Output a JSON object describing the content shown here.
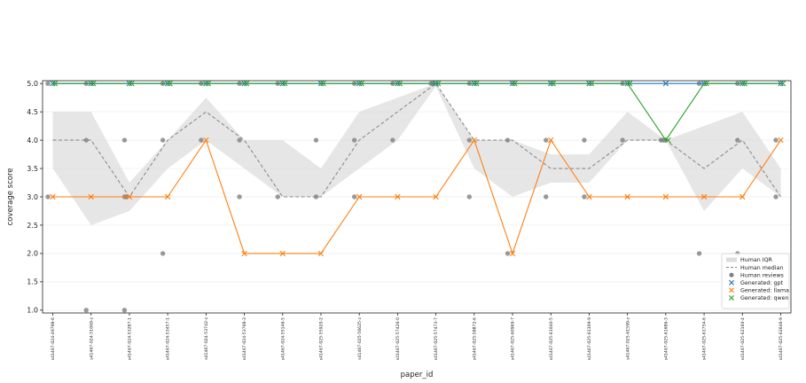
{
  "chart_data": {
    "type": "line",
    "title": "",
    "xlabel": "paper_id",
    "ylabel": "coverage score",
    "ylim": [
      0.95,
      5.05
    ],
    "yticks": [
      "1.0",
      "1.5",
      "2.0",
      "2.5",
      "3.0",
      "3.5",
      "4.0",
      "4.5",
      "5.0"
    ],
    "grid": "horizontal",
    "legend_position": "lower-right",
    "categories": [
      "s41467-024-49798-6",
      "s41467-024-51669-z",
      "s41467-024-53287-1",
      "s41467-024-53457-1",
      "s41467-024-53742-z",
      "s41467-024-53768-3",
      "s41467-024-55146-5",
      "s41467-025-55920-2",
      "s41467-025-56625-z",
      "s41467-025-57426-0",
      "s41467-025-57473-7",
      "s41467-025-58872-6",
      "s41467-025-60969-7",
      "s41467-025-61040-5",
      "s41467-025-61309-9",
      "s41467-025-61599-z",
      "s41467-025-61686-3",
      "s41467-025-61754-6",
      "s41467-025-62160-4",
      "s41467-025-62646-9"
    ],
    "human_iqr": {
      "name": "Human IQR",
      "lower": [
        3.5,
        2.5,
        2.75,
        3.5,
        4.0,
        3.5,
        3.0,
        3.0,
        3.5,
        4.0,
        4.95,
        3.5,
        3.0,
        3.25,
        3.25,
        4.0,
        4.0,
        2.75,
        3.5,
        3.0
      ],
      "upper": [
        4.5,
        4.5,
        3.25,
        4.0,
        4.75,
        4.0,
        4.0,
        3.5,
        4.5,
        4.75,
        5.0,
        4.0,
        4.0,
        3.75,
        3.75,
        4.5,
        4.0,
        4.25,
        4.5,
        3.5
      ]
    },
    "human_median": {
      "name": "Human median",
      "values": [
        4.0,
        4.0,
        3.0,
        4.0,
        4.5,
        4.0,
        3.0,
        3.0,
        4.0,
        4.5,
        5.0,
        4.0,
        4.0,
        3.5,
        3.5,
        4.0,
        4.0,
        3.5,
        4.0,
        3.0
      ]
    },
    "human_reviews": {
      "name": "Human reviews",
      "points": [
        [
          0,
          5
        ],
        [
          0,
          3
        ],
        [
          1,
          5
        ],
        [
          1,
          4
        ],
        [
          1,
          1
        ],
        [
          2,
          4
        ],
        [
          2,
          3
        ],
        [
          2,
          3
        ],
        [
          2,
          1
        ],
        [
          3,
          5
        ],
        [
          3,
          4
        ],
        [
          3,
          2
        ],
        [
          4,
          5
        ],
        [
          4,
          4
        ],
        [
          5,
          5
        ],
        [
          5,
          4
        ],
        [
          5,
          3
        ],
        [
          6,
          5
        ],
        [
          6,
          3
        ],
        [
          7,
          4
        ],
        [
          7,
          3
        ],
        [
          8,
          5
        ],
        [
          8,
          4
        ],
        [
          8,
          3
        ],
        [
          9,
          5
        ],
        [
          9,
          4
        ],
        [
          10,
          5
        ],
        [
          10,
          5
        ],
        [
          11,
          5
        ],
        [
          11,
          4
        ],
        [
          11,
          3
        ],
        [
          12,
          4
        ],
        [
          12,
          2
        ],
        [
          13,
          4
        ],
        [
          13,
          3
        ],
        [
          14,
          4
        ],
        [
          14,
          3
        ],
        [
          15,
          5
        ],
        [
          15,
          4
        ],
        [
          16,
          4
        ],
        [
          16,
          4
        ],
        [
          16,
          4
        ],
        [
          17,
          5
        ],
        [
          17,
          2
        ],
        [
          18,
          5
        ],
        [
          18,
          4
        ],
        [
          18,
          2
        ],
        [
          19,
          4
        ],
        [
          19,
          3
        ]
      ]
    },
    "series": [
      {
        "name": "Generated: gpt",
        "color": "#1f77b4",
        "values": [
          5,
          5,
          5,
          5,
          5,
          5,
          5,
          5,
          5,
          5,
          5,
          5,
          5,
          5,
          5,
          5,
          5,
          5,
          5,
          5
        ]
      },
      {
        "name": "Generated: llama",
        "color": "#ff7f0e",
        "values": [
          3,
          3,
          3,
          3,
          4,
          2,
          2,
          2,
          3,
          3,
          3,
          4,
          2,
          4,
          3,
          3,
          3,
          3,
          3,
          4
        ]
      },
      {
        "name": "Generated: qwen",
        "color": "#2ca02c",
        "values": [
          5,
          5,
          5,
          5,
          5,
          5,
          5,
          5,
          5,
          5,
          5,
          5,
          5,
          5,
          5,
          5,
          4,
          5,
          5,
          5
        ]
      }
    ],
    "colors": {
      "iqr_fill": "#dcdcdc",
      "median_line": "#8c8c8c",
      "human_points": "#7f7f7f",
      "grid": "#ececec"
    }
  }
}
